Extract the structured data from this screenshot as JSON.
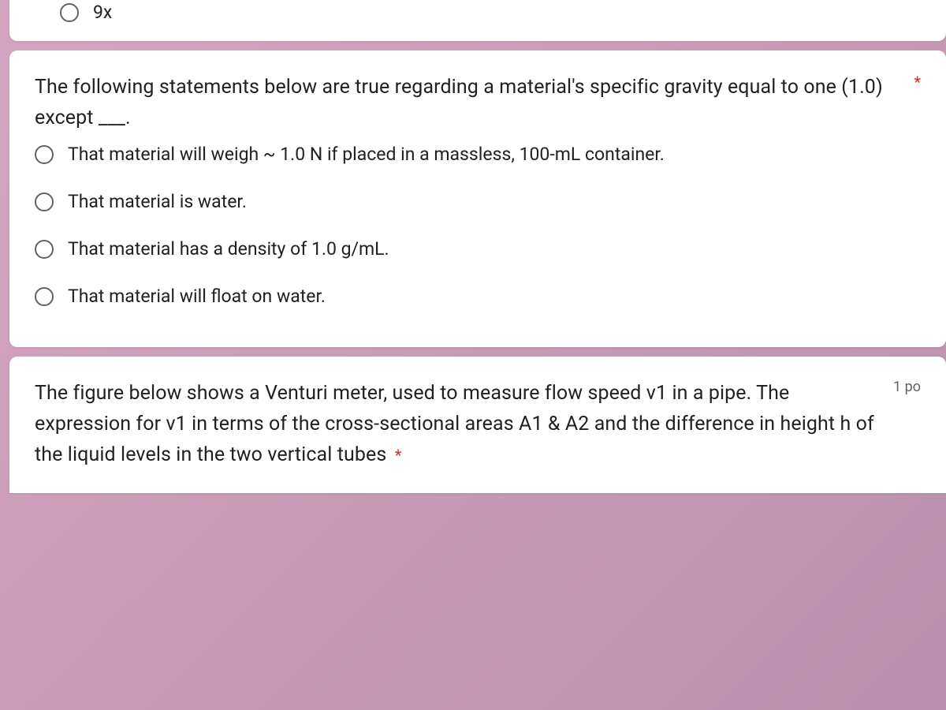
{
  "colors": {
    "background_gradient_start": "#d4a5c0",
    "background_gradient_mid": "#c89bb5",
    "background_gradient_end": "#b890ab",
    "card_bg": "#ffffff",
    "text_primary": "#202124",
    "text_secondary": "#5f6368",
    "radio_border": "#5f6368",
    "required_red": "#d93025"
  },
  "typography": {
    "question_fontsize": 25,
    "option_fontsize": 23,
    "points_fontsize": 18
  },
  "card_top": {
    "option_label": "9x"
  },
  "question_main": {
    "text": "The following statements below are true regarding a material's specific gravity equal to one (1.0) except ___.",
    "required": "*",
    "options": [
      "That material will weigh ~ 1.0 N if placed in a massless, 100-mL container.",
      "That material is water.",
      "That material has a density of 1.0 g/mL.",
      "That material will float on water."
    ]
  },
  "question_bottom": {
    "text": "The figure below shows a Venturi meter, used to measure flow speed v1 in a pipe. The expression for v1 in terms of the cross-sectional areas A1 & A2 and the difference in height h of the liquid levels in the two vertical tubes",
    "required": "*",
    "points": "1 po"
  }
}
